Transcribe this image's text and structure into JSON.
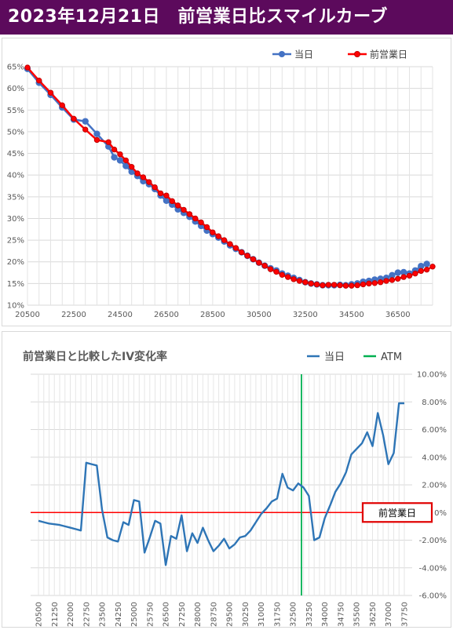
{
  "header": {
    "title": "2023年12月21日　前営業日比スマイルカーブ"
  },
  "chart_data": [
    {
      "type": "line",
      "title": "",
      "xlabel": "",
      "ylabel": "",
      "xlim": [
        20500,
        38000
      ],
      "ylim": [
        10,
        65
      ],
      "x_ticks": [
        "20500",
        "22500",
        "24500",
        "26500",
        "28500",
        "30500",
        "32500",
        "34500",
        "36500"
      ],
      "y_ticks": [
        "10%",
        "15%",
        "20%",
        "25%",
        "30%",
        "35%",
        "40%",
        "45%",
        "50%",
        "55%",
        "60%",
        "65%"
      ],
      "grid": true,
      "legend": "top-right",
      "series": [
        {
          "name": "当日",
          "color": "#4472c4",
          "x": [
            20500,
            21000,
            21500,
            22000,
            22500,
            23000,
            23500,
            24000,
            24250,
            24500,
            24750,
            25000,
            25250,
            25500,
            25750,
            26000,
            26250,
            26500,
            26750,
            27000,
            27250,
            27500,
            27750,
            28000,
            28250,
            28500,
            28750,
            29000,
            29250,
            29500,
            29750,
            30000,
            30250,
            30500,
            30750,
            31000,
            31250,
            31500,
            31750,
            32000,
            32250,
            32500,
            32750,
            33000,
            33250,
            33500,
            33750,
            34000,
            34250,
            34500,
            34750,
            35000,
            35250,
            35500,
            35750,
            36000,
            36250,
            36500,
            36750,
            37000,
            37250,
            37500,
            37750
          ],
          "y": [
            64.5,
            61.3,
            58.5,
            55.6,
            52.8,
            52.4,
            49.5,
            46.6,
            44.1,
            43.4,
            42.1,
            40.8,
            39.8,
            38.6,
            37.9,
            36.8,
            35.3,
            34.1,
            33.2,
            32.1,
            31.3,
            30.4,
            29.3,
            28.3,
            27.2,
            26.4,
            25.6,
            24.7,
            23.8,
            23.0,
            22.2,
            21.4,
            20.6,
            19.8,
            19.1,
            18.5,
            18.0,
            17.3,
            16.8,
            16.3,
            15.8,
            15.3,
            15.0,
            14.8,
            14.6,
            14.6,
            14.6,
            14.7,
            14.6,
            14.8,
            15.0,
            15.4,
            15.6,
            15.9,
            16.1,
            16.3,
            16.9,
            17.5,
            17.6,
            17.3,
            18.0,
            19.0,
            19.5
          ]
        },
        {
          "name": "前営業日",
          "color": "#ff0000",
          "x": [
            20500,
            21000,
            21500,
            22000,
            22500,
            23000,
            23500,
            24000,
            24250,
            24500,
            24750,
            25000,
            25250,
            25500,
            25750,
            26000,
            26250,
            26500,
            26750,
            27000,
            27250,
            27500,
            27750,
            28000,
            28250,
            28500,
            28750,
            29000,
            29250,
            29500,
            29750,
            30000,
            30250,
            30500,
            30750,
            31000,
            31250,
            31500,
            31750,
            32000,
            32250,
            32500,
            32750,
            33000,
            33250,
            33500,
            33750,
            34000,
            34250,
            34500,
            34750,
            35000,
            35250,
            35500,
            35750,
            36000,
            36250,
            36500,
            36750,
            37000,
            37250,
            37500,
            37750,
            38000
          ],
          "y": [
            64.8,
            61.8,
            59.0,
            56.1,
            53.0,
            50.5,
            48.1,
            47.6,
            45.9,
            44.8,
            43.4,
            41.9,
            40.4,
            39.5,
            38.4,
            37.2,
            35.8,
            35.3,
            34.0,
            33.0,
            32.0,
            31.0,
            30.0,
            29.1,
            28.0,
            26.8,
            25.9,
            25.0,
            24.1,
            23.2,
            22.2,
            21.4,
            20.6,
            19.8,
            19.1,
            18.3,
            17.7,
            17.0,
            16.5,
            16.0,
            15.6,
            15.3,
            15.0,
            14.8,
            14.6,
            14.7,
            14.7,
            14.6,
            14.5,
            14.5,
            14.6,
            14.8,
            15.0,
            15.1,
            15.3,
            15.6,
            15.8,
            16.1,
            16.5,
            16.8,
            17.3,
            17.9,
            18.2,
            18.9
          ]
        }
      ]
    },
    {
      "type": "line",
      "title": "前営業日と比較したIV変化率",
      "xlabel": "",
      "ylabel": "",
      "xlim": [
        20500,
        37750
      ],
      "ylim": [
        -6,
        10
      ],
      "x_ticks": [
        "20500",
        "21250",
        "22000",
        "22750",
        "23500",
        "24250",
        "25000",
        "25750",
        "26500",
        "27250",
        "28000",
        "28750",
        "29500",
        "30250",
        "31000",
        "31750",
        "32500",
        "33250",
        "34000",
        "34750",
        "35500",
        "36250",
        "37000",
        "37750"
      ],
      "y_ticks": [
        "-6.00%",
        "-4.00%",
        "-2.00%",
        "0%",
        "2.00%",
        "4.00%",
        "6.00%",
        "8.00%",
        "10.00%"
      ],
      "grid": true,
      "legend": "top-right",
      "annotation": "前営業日",
      "series": [
        {
          "name": "当日",
          "color": "#2e75b6",
          "x": [
            20500,
            20750,
            21000,
            21250,
            21500,
            21750,
            22000,
            22250,
            22500,
            22750,
            23000,
            23250,
            23500,
            23750,
            24000,
            24250,
            24500,
            24750,
            25000,
            25250,
            25500,
            25750,
            26000,
            26250,
            26500,
            26750,
            27000,
            27250,
            27500,
            27750,
            28000,
            28250,
            28500,
            28750,
            29000,
            29250,
            29500,
            29750,
            30000,
            30250,
            30500,
            30750,
            31000,
            31250,
            31500,
            31750,
            32000,
            32250,
            32500,
            32750,
            33000,
            33250,
            33500,
            33750,
            34000,
            34250,
            34500,
            34750,
            35000,
            35250,
            35500,
            35750,
            36000,
            36250,
            36500,
            36750,
            37000,
            37250,
            37500,
            37750
          ],
          "y": [
            -0.6,
            -0.7,
            -0.8,
            -0.85,
            -0.9,
            -1.0,
            -1.1,
            -1.2,
            -1.3,
            3.6,
            3.5,
            3.4,
            0.2,
            -1.8,
            -2.0,
            -2.1,
            -0.7,
            -0.9,
            0.9,
            0.8,
            -2.9,
            -1.8,
            -0.6,
            -0.8,
            -3.8,
            -1.7,
            -1.9,
            -0.2,
            -2.8,
            -1.5,
            -2.2,
            -1.1,
            -2.0,
            -2.8,
            -2.4,
            -1.9,
            -2.6,
            -2.3,
            -1.8,
            -1.7,
            -1.3,
            -0.7,
            -0.1,
            0.3,
            0.8,
            1.0,
            2.8,
            1.8,
            1.6,
            2.1,
            1.8,
            1.2,
            -2.0,
            -1.8,
            -0.4,
            0.5,
            1.5,
            2.1,
            2.9,
            4.2,
            4.6,
            5.0,
            5.8,
            4.8,
            7.2,
            5.6,
            3.5,
            4.3,
            7.9,
            7.9
          ]
        },
        {
          "name": "ATM",
          "color": "#00b050",
          "x": [
            32900,
            32900
          ],
          "y": [
            -6,
            10
          ]
        },
        {
          "name": "前営業日",
          "color": "#ff0000",
          "x": [
            20500,
            37750
          ],
          "y": [
            0,
            0
          ]
        }
      ]
    }
  ]
}
